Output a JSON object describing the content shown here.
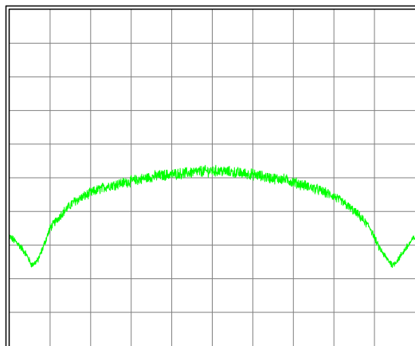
{
  "chart_data": {
    "type": "line",
    "title": "",
    "xlabel": "",
    "ylabel": "",
    "grid": true,
    "x_divisions": 10,
    "y_divisions": 10,
    "xlim": [
      0,
      10
    ],
    "ylim": [
      0,
      10
    ],
    "series": [
      {
        "color": "#00ff00",
        "x": [
          0,
          0.2,
          0.4,
          0.55,
          0.7,
          0.8,
          1.0,
          1.3,
          1.6,
          2.0,
          2.4,
          2.8,
          3.2,
          3.6,
          4.0,
          4.4,
          4.8,
          5.0,
          5.2,
          5.6,
          6.0,
          6.4,
          6.8,
          7.2,
          7.6,
          8.0,
          8.3,
          8.6,
          8.9,
          9.1,
          9.3,
          9.45,
          9.6,
          9.8,
          10.0
        ],
        "values": [
          3.25,
          3.05,
          2.75,
          2.4,
          2.55,
          2.85,
          3.5,
          3.95,
          4.3,
          4.55,
          4.75,
          4.85,
          4.95,
          5.05,
          5.1,
          5.15,
          5.2,
          5.2,
          5.2,
          5.15,
          5.1,
          5.0,
          4.95,
          4.8,
          4.65,
          4.45,
          4.2,
          3.9,
          3.5,
          2.95,
          2.6,
          2.4,
          2.6,
          2.95,
          3.25
        ]
      }
    ]
  }
}
